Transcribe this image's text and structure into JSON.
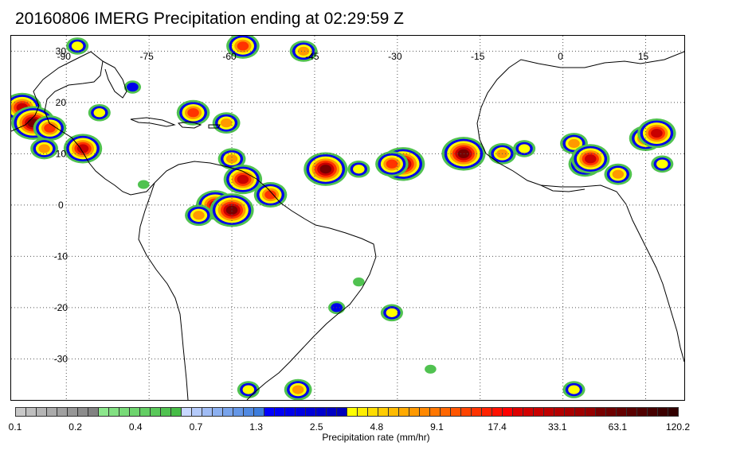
{
  "title": "20160806 IMERG Precipitation ending at 02:29:59 Z",
  "map": {
    "lon_range": [
      -100,
      22
    ],
    "lat_range": [
      -38,
      33
    ],
    "lon_ticks": [
      -90,
      -75,
      -60,
      -45,
      -30,
      -15,
      0,
      15
    ],
    "lon_tick_labels": [
      "-90",
      "-75",
      "-60",
      "-45",
      "-30",
      "-15",
      "0",
      "15"
    ],
    "lat_ticks": [
      30,
      20,
      10,
      0,
      -10,
      -20,
      -30
    ],
    "lat_tick_labels": [
      "30",
      "20",
      "10",
      "0",
      "-10",
      "-20",
      "-30"
    ],
    "gridlines": "dotted",
    "coastline_color": "#000000"
  },
  "precip_cells": [
    {
      "lon": -98,
      "lat": 19,
      "rate": 17.4
    },
    {
      "lon": -96,
      "lat": 16,
      "rate": 33.1
    },
    {
      "lon": -93,
      "lat": 15,
      "rate": 9.1
    },
    {
      "lon": -87,
      "lat": 11,
      "rate": 17.4
    },
    {
      "lon": -94,
      "lat": 11,
      "rate": 4.8
    },
    {
      "lon": -84,
      "lat": 18,
      "rate": 2.5
    },
    {
      "lon": -78,
      "lat": 23,
      "rate": 1.3
    },
    {
      "lon": -67,
      "lat": 18,
      "rate": 9.1
    },
    {
      "lon": -61,
      "lat": 16,
      "rate": 4.8
    },
    {
      "lon": -60,
      "lat": 9,
      "rate": 4.8
    },
    {
      "lon": -58,
      "lat": 5,
      "rate": 17.4
    },
    {
      "lon": -63,
      "lat": 0,
      "rate": 17.4
    },
    {
      "lon": -66,
      "lat": -2,
      "rate": 4.8
    },
    {
      "lon": -53,
      "lat": 2,
      "rate": 9.1
    },
    {
      "lon": -60,
      "lat": -1,
      "rate": 33.1
    },
    {
      "lon": -47,
      "lat": 30,
      "rate": 4.8
    },
    {
      "lon": -58,
      "lat": 31,
      "rate": 9.1
    },
    {
      "lon": -88,
      "lat": 31,
      "rate": 2.5
    },
    {
      "lon": -43,
      "lat": 7,
      "rate": 33.1
    },
    {
      "lon": -37,
      "lat": 7,
      "rate": 2.5
    },
    {
      "lon": -29,
      "lat": 8,
      "rate": 33.1
    },
    {
      "lon": -31,
      "lat": 8,
      "rate": 9.1
    },
    {
      "lon": -18,
      "lat": 10,
      "rate": 33.1
    },
    {
      "lon": -11,
      "lat": 10,
      "rate": 4.8
    },
    {
      "lon": -7,
      "lat": 11,
      "rate": 2.5
    },
    {
      "lon": 2,
      "lat": 12,
      "rate": 4.8
    },
    {
      "lon": 4,
      "lat": 8,
      "rate": 9.1
    },
    {
      "lon": 5,
      "lat": 9,
      "rate": 17.4
    },
    {
      "lon": 10,
      "lat": 6,
      "rate": 4.8
    },
    {
      "lon": 15,
      "lat": 13,
      "rate": 9.1
    },
    {
      "lon": 17,
      "lat": 14,
      "rate": 17.4
    },
    {
      "lon": 18,
      "lat": 8,
      "rate": 2.5
    },
    {
      "lon": -57,
      "lat": -36,
      "rate": 2.5
    },
    {
      "lon": -48,
      "lat": -36,
      "rate": 4.8
    },
    {
      "lon": 2,
      "lat": -36,
      "rate": 2.5
    },
    {
      "lon": -41,
      "lat": -20,
      "rate": 1.3
    },
    {
      "lon": -31,
      "lat": -21,
      "rate": 2.5
    },
    {
      "lon": -76,
      "lat": 4,
      "rate": 0.7
    },
    {
      "lon": -37,
      "lat": -15,
      "rate": 0.4
    },
    {
      "lon": -24,
      "lat": -32,
      "rate": 0.4
    }
  ],
  "colorbar": {
    "colors": [
      "#c8c8c8",
      "#bebebe",
      "#b4b4b4",
      "#aaaaaa",
      "#a0a0a0",
      "#969696",
      "#8c8c8c",
      "#828282",
      "#8ce68c",
      "#82e082",
      "#78da78",
      "#6ed46e",
      "#64ce64",
      "#5ac85a",
      "#50c250",
      "#46bc46",
      "#c8d8ff",
      "#b4cafa",
      "#a0bcf5",
      "#8cb0f0",
      "#78a3eb",
      "#6496e6",
      "#5089e1",
      "#3c7cdc",
      "#0000ff",
      "#0000f5",
      "#0000eb",
      "#0000e1",
      "#0000d7",
      "#0000cd",
      "#0000c3",
      "#0000b9",
      "#ffff00",
      "#ffee00",
      "#ffdd00",
      "#ffcc00",
      "#ffbb00",
      "#ffaa00",
      "#ff9900",
      "#ff8800",
      "#ff7700",
      "#ff6600",
      "#ff5500",
      "#ff4400",
      "#ff3300",
      "#ff2200",
      "#ff1100",
      "#ff0000",
      "#dc0000",
      "#d20000",
      "#c80000",
      "#be0000",
      "#b40000",
      "#aa0000",
      "#a00000",
      "#960000",
      "#780000",
      "#6e0000",
      "#640000",
      "#5a0000",
      "#500000",
      "#460000",
      "#3c0000",
      "#320000"
    ],
    "labels": [
      "0.1",
      "0.2",
      "0.4",
      "0.7",
      "1.3",
      "2.5",
      "4.8",
      "9.1",
      "17.4",
      "33.1",
      "63.1",
      "120.2"
    ],
    "title": "Precipitation rate (mm/hr)"
  }
}
